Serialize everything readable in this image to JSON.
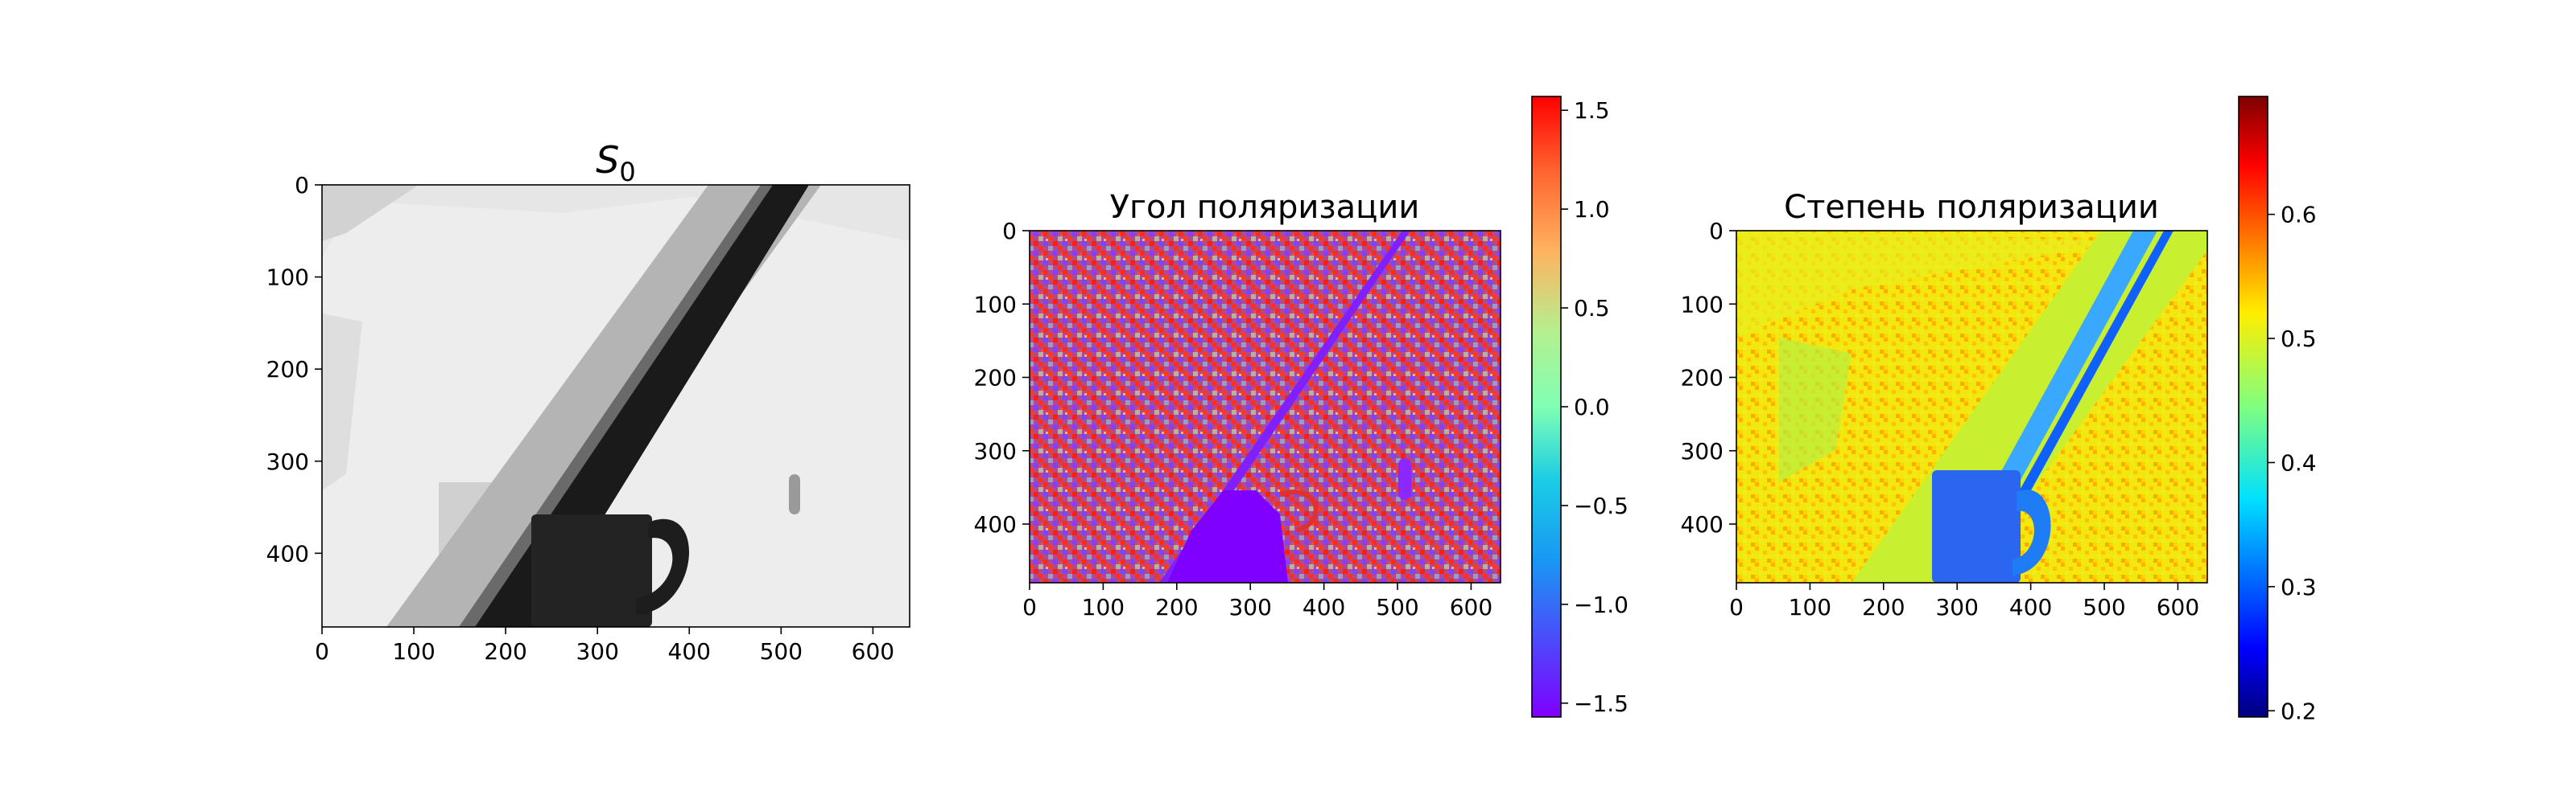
{
  "chart_data": [
    {
      "type": "heatmap",
      "title": "S_0",
      "title_base": "S",
      "title_sub": "0",
      "colormap": "gray",
      "x_ticks": [
        0,
        100,
        200,
        300,
        400,
        500,
        600
      ],
      "y_ticks": [
        0,
        100,
        200,
        300,
        400
      ],
      "xlim": [
        0,
        640
      ],
      "ylim": [
        480,
        0
      ],
      "image_description": "grayscale intensity image: light background, dark diagonal bar from bottom-left to top-right, dark mug at lower center"
    },
    {
      "type": "heatmap",
      "title": "Угол поляризации",
      "colormap": "rainbow",
      "x_ticks": [
        0,
        100,
        200,
        300,
        400,
        500,
        600
      ],
      "y_ticks": [
        0,
        100,
        200,
        300,
        400
      ],
      "xlim": [
        0,
        640
      ],
      "ylim": [
        480,
        0
      ],
      "colorbar": {
        "ticks": [
          1.5,
          1.0,
          0.5,
          0.0,
          -0.5,
          -1.0,
          -1.5
        ],
        "tick_labels": [
          "1.5",
          "1.0",
          "0.5",
          "0.0",
          "−0.5",
          "−1.0",
          "−1.5"
        ],
        "range": [
          -1.57,
          1.57
        ]
      }
    },
    {
      "type": "heatmap",
      "title": "Степень поляризации",
      "colormap": "jet",
      "x_ticks": [
        0,
        100,
        200,
        300,
        400,
        500,
        600
      ],
      "y_ticks": [
        0,
        100,
        200,
        300,
        400
      ],
      "xlim": [
        0,
        640
      ],
      "ylim": [
        480,
        0
      ],
      "colorbar": {
        "ticks": [
          0.6,
          0.5,
          0.4,
          0.3,
          0.2
        ],
        "tick_labels": [
          "0.6",
          "0.5",
          "0.4",
          "0.3",
          "0.2"
        ],
        "range": [
          0.195,
          0.695
        ]
      }
    }
  ]
}
